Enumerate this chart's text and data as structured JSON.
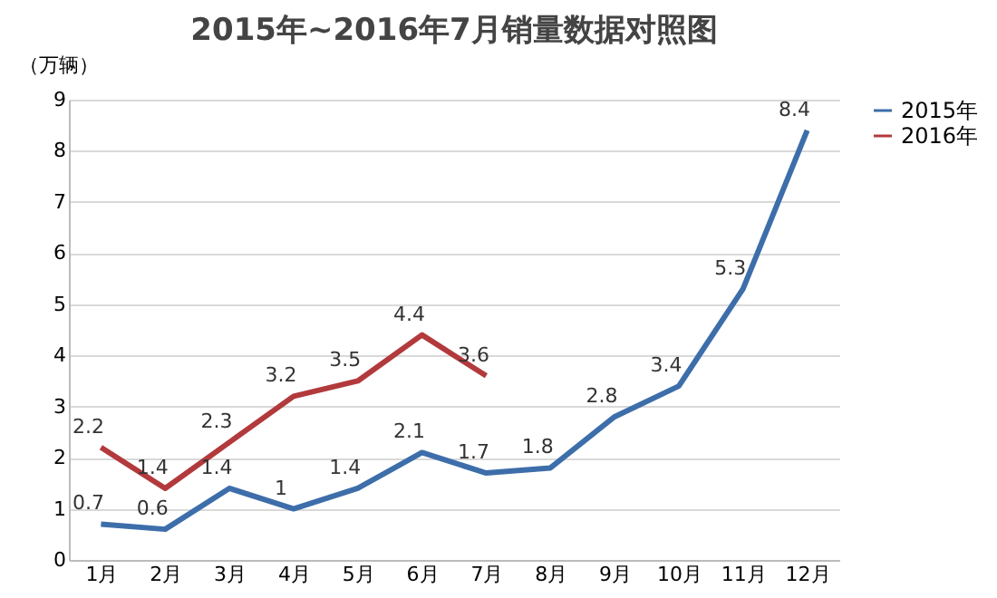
{
  "chart_data": {
    "type": "line",
    "title": "2015年~2016年7月销量数据对照图",
    "ylabel": "（万辆）",
    "categories": [
      "1月",
      "2月",
      "3月",
      "4月",
      "5月",
      "6月",
      "7月",
      "8月",
      "9月",
      "10月",
      "11月",
      "12月"
    ],
    "series": [
      {
        "name": "2015年",
        "color": "#3d6eaa",
        "values": [
          0.7,
          0.6,
          1.4,
          1,
          1.4,
          2.1,
          1.7,
          1.8,
          2.8,
          3.4,
          5.3,
          8.4
        ]
      },
      {
        "name": "2016年",
        "color": "#b23a3c",
        "values": [
          2.2,
          1.4,
          2.3,
          3.2,
          3.5,
          4.4,
          3.6,
          null,
          null,
          null,
          null,
          null
        ]
      }
    ],
    "ylim": [
      0,
      9
    ],
    "yticks": [
      0,
      1,
      2,
      3,
      4,
      5,
      6,
      7,
      8,
      9
    ],
    "grid": "y",
    "legend": "right",
    "data_labels": true,
    "marker": "none",
    "line_style": "solid"
  }
}
